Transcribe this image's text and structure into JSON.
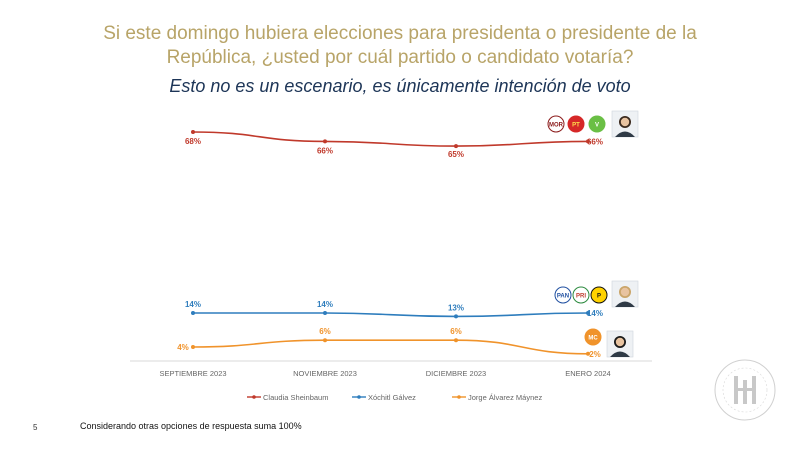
{
  "title": "Si este domingo hubiera elecciones para presidenta o presidente de la República, ¿usted por cuál partido o candidato votaría?",
  "subtitle": "Esto no es un escenario, es únicamente intención de voto",
  "page_number": "5",
  "footnote": "Considerando otras opciones de respuesta suma 100%",
  "party_logos": [
    "MORENA",
    "PT",
    "PVEM",
    "PAN",
    "PRI",
    "PRD",
    "MC"
  ],
  "colors": {
    "sheinbaum": "#c0392b",
    "galvez": "#2e7dbd",
    "maynez": "#f0932b",
    "title": "#b8a468",
    "subtitle": "#1d3557"
  },
  "chart_data": {
    "type": "line",
    "categories": [
      "SEPTIEMBRE 2023",
      "NOVIEMBRE 2023",
      "DICIEMBRE 2023",
      "ENERO 2024"
    ],
    "series": [
      {
        "name": "Claudia Sheinbaum",
        "values": [
          68,
          66,
          65,
          66
        ],
        "labels": [
          "68%",
          "66%",
          "65%",
          "66%"
        ]
      },
      {
        "name": "Xóchitl Gálvez",
        "values": [
          14,
          14,
          13,
          14
        ],
        "labels": [
          "14%",
          "14%",
          "13%",
          "14%"
        ]
      },
      {
        "name": "Jorge Álvarez Máynez",
        "values": [
          4,
          6,
          6,
          2
        ],
        "labels": [
          "4%",
          "6%",
          "6%",
          "2%"
        ]
      }
    ],
    "legend_position": "bottom",
    "grid": false
  }
}
